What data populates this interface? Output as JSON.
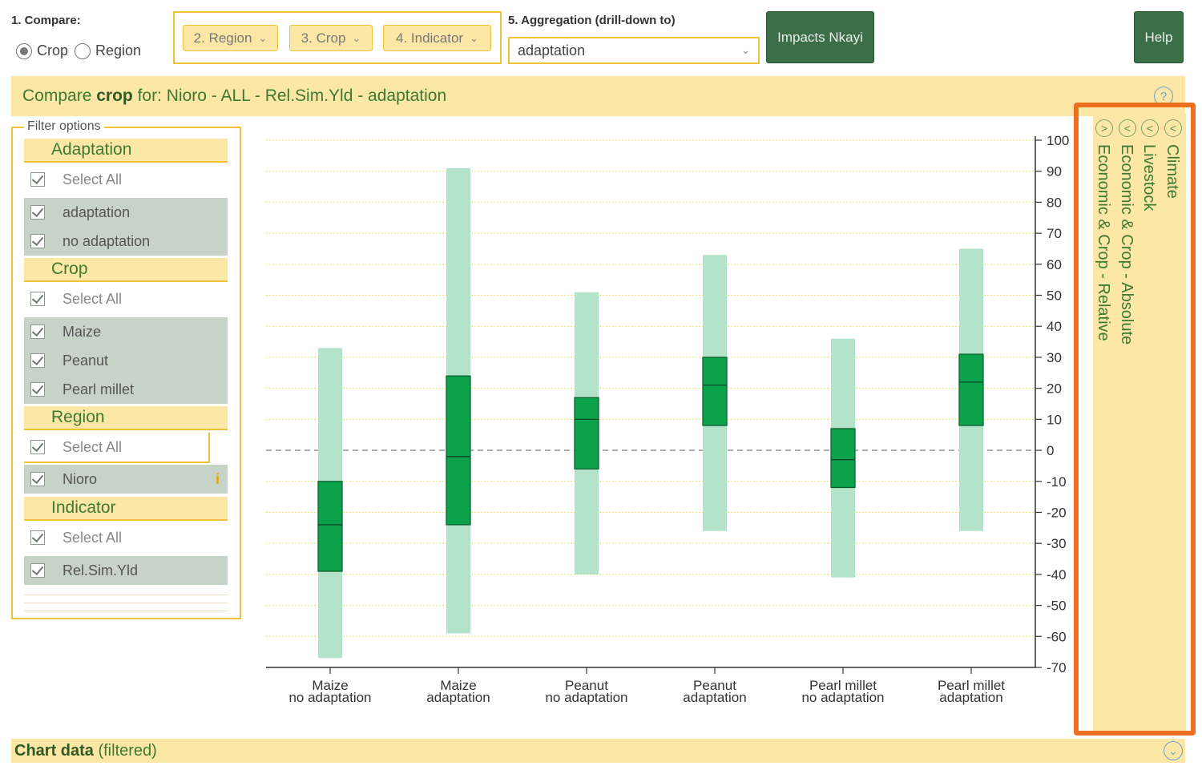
{
  "compare": {
    "label": "1. Compare:",
    "options": [
      {
        "label": "Crop",
        "selected": true
      },
      {
        "label": "Region",
        "selected": false
      }
    ]
  },
  "selectors": {
    "region": "2. Region",
    "crop": "3. Crop",
    "indicator": "4. Indicator"
  },
  "aggregation": {
    "label": "5. Aggregation (drill-down to)",
    "value": "adaptation"
  },
  "buttons": {
    "impacts": "Impacts Nkayi",
    "help": "Help"
  },
  "title": {
    "prefix": "Compare",
    "mode": "crop",
    "rest": "for: Nioro - ALL - Rel.Sim.Yld - adaptation",
    "help_glyph": "?"
  },
  "filter": {
    "legend": "Filter options",
    "sections": [
      {
        "title": "Adaptation",
        "select_all": "Select All",
        "items": [
          "adaptation",
          "no adaptation"
        ]
      },
      {
        "title": "Crop",
        "select_all": "Select All",
        "items": [
          "Maize",
          "Peanut",
          "Pearl millet"
        ]
      },
      {
        "title": "Region",
        "select_all": "Select All",
        "items": [
          "Nioro"
        ]
      },
      {
        "title": "Indicator",
        "select_all": "Select All",
        "items": [
          "Rel.Sim.Yld"
        ]
      }
    ],
    "info_glyph": "i"
  },
  "side_panel": {
    "tabs": [
      "Climate",
      "Livestock",
      "Economic & Crop - Absolute",
      "Economic & Crop - Relative"
    ],
    "arrows": [
      "<",
      "<",
      "<",
      ">"
    ]
  },
  "chart_data": {
    "type": "box",
    "categories": [
      [
        "Maize",
        "no adaptation"
      ],
      [
        "Maize",
        "adaptation"
      ],
      [
        "Peanut",
        "no adaptation"
      ],
      [
        "Peanut",
        "adaptation"
      ],
      [
        "Pearl millet",
        "no adaptation"
      ],
      [
        "Pearl millet",
        "adaptation"
      ]
    ],
    "series": [
      {
        "name": "",
        "range": [
          [
            -67,
            33
          ],
          [
            -59,
            91
          ],
          [
            -40,
            51
          ],
          [
            -26,
            63
          ],
          [
            -41,
            36
          ],
          [
            -26,
            65
          ]
        ],
        "box": [
          [
            -39,
            -10
          ],
          [
            -24,
            24
          ],
          [
            -6,
            17
          ],
          [
            8,
            30
          ],
          [
            -12,
            7
          ],
          [
            8,
            31
          ]
        ],
        "median": [
          -24,
          -2,
          10,
          21,
          -3,
          22
        ]
      }
    ],
    "yticks": [
      100,
      90,
      80,
      70,
      60,
      50,
      40,
      30,
      20,
      10,
      0,
      -10,
      -20,
      -30,
      -40,
      -50,
      -60,
      -70
    ],
    "ylim": [
      -70,
      100
    ],
    "zero_line": 0,
    "colors": {
      "range": "#b3e3c8",
      "box": "#0aa24b",
      "grid": "#e8e06a",
      "zero": "#888888"
    }
  },
  "bottom": {
    "title": "Chart data",
    "suffix": "(filtered)",
    "glyph": "⌄"
  }
}
